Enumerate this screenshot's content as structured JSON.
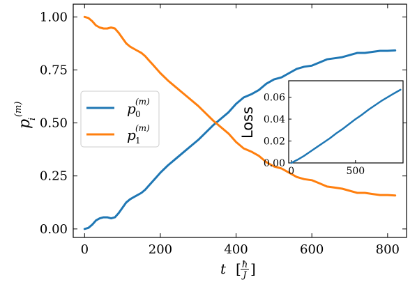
{
  "chart_data": [
    {
      "type": "line",
      "title": "",
      "xlabel": "t [ħ/J]",
      "ylabel": "p_i^(m)",
      "xlim": [
        -30,
        850
      ],
      "ylim": [
        -0.04,
        1.06
      ],
      "x_ticks": [
        "0",
        "200",
        "400",
        "600",
        "800"
      ],
      "y_ticks": [
        "0.00",
        "0.25",
        "0.50",
        "0.75",
        "1.00"
      ],
      "grid": false,
      "legend_position": "center-left",
      "series": [
        {
          "name": "p_0^(m)",
          "color": "#1f77b4",
          "x": [
            0,
            10,
            20,
            30,
            40,
            50,
            60,
            70,
            80,
            90,
            100,
            110,
            120,
            130,
            140,
            150,
            160,
            170,
            180,
            190,
            200,
            220,
            240,
            260,
            280,
            300,
            320,
            340,
            360,
            380,
            400,
            420,
            440,
            460,
            480,
            500,
            520,
            540,
            560,
            580,
            600,
            620,
            640,
            660,
            680,
            700,
            720,
            740,
            760,
            780,
            800,
            820
          ],
          "values": [
            0.0,
            0.005,
            0.02,
            0.04,
            0.05,
            0.055,
            0.055,
            0.05,
            0.055,
            0.075,
            0.1,
            0.125,
            0.14,
            0.15,
            0.16,
            0.17,
            0.185,
            0.205,
            0.225,
            0.245,
            0.265,
            0.3,
            0.33,
            0.36,
            0.39,
            0.42,
            0.455,
            0.49,
            0.52,
            0.55,
            0.59,
            0.62,
            0.635,
            0.655,
            0.685,
            0.705,
            0.715,
            0.735,
            0.755,
            0.765,
            0.77,
            0.785,
            0.8,
            0.805,
            0.81,
            0.82,
            0.83,
            0.83,
            0.835,
            0.84,
            0.84,
            0.842
          ]
        },
        {
          "name": "p_1^(m)",
          "color": "#ff7f0e",
          "x": [
            0,
            10,
            20,
            30,
            40,
            50,
            60,
            70,
            80,
            90,
            100,
            110,
            120,
            130,
            140,
            150,
            160,
            170,
            180,
            190,
            200,
            220,
            240,
            260,
            280,
            300,
            320,
            340,
            360,
            380,
            400,
            420,
            440,
            460,
            480,
            500,
            520,
            540,
            560,
            580,
            600,
            620,
            640,
            660,
            680,
            700,
            720,
            740,
            760,
            780,
            800,
            820
          ],
          "values": [
            1.0,
            0.995,
            0.98,
            0.96,
            0.95,
            0.945,
            0.945,
            0.95,
            0.945,
            0.925,
            0.9,
            0.875,
            0.86,
            0.85,
            0.84,
            0.83,
            0.815,
            0.795,
            0.775,
            0.755,
            0.735,
            0.7,
            0.67,
            0.64,
            0.61,
            0.58,
            0.545,
            0.51,
            0.48,
            0.45,
            0.41,
            0.38,
            0.365,
            0.345,
            0.315,
            0.295,
            0.285,
            0.265,
            0.245,
            0.235,
            0.23,
            0.215,
            0.2,
            0.195,
            0.19,
            0.18,
            0.17,
            0.17,
            0.165,
            0.16,
            0.16,
            0.158
          ]
        }
      ]
    },
    {
      "type": "line",
      "title": "",
      "xlabel": "",
      "ylabel": "Loss",
      "xlim": [
        -20,
        870
      ],
      "ylim": [
        0.0,
        0.075
      ],
      "x_ticks": [
        "0",
        "500"
      ],
      "y_ticks": [
        "0.00",
        "0.02",
        "0.04",
        "0.06"
      ],
      "grid": false,
      "series": [
        {
          "color": "#1f77b4",
          "x": [
            0,
            50,
            100,
            150,
            200,
            250,
            300,
            350,
            400,
            450,
            500,
            550,
            600,
            650,
            700,
            750,
            800,
            850
          ],
          "values": [
            0.0,
            0.003,
            0.0065,
            0.0105,
            0.0145,
            0.0185,
            0.0225,
            0.027,
            0.031,
            0.0355,
            0.04,
            0.044,
            0.0485,
            0.0525,
            0.0565,
            0.06,
            0.0635,
            0.0668
          ]
        }
      ]
    }
  ]
}
